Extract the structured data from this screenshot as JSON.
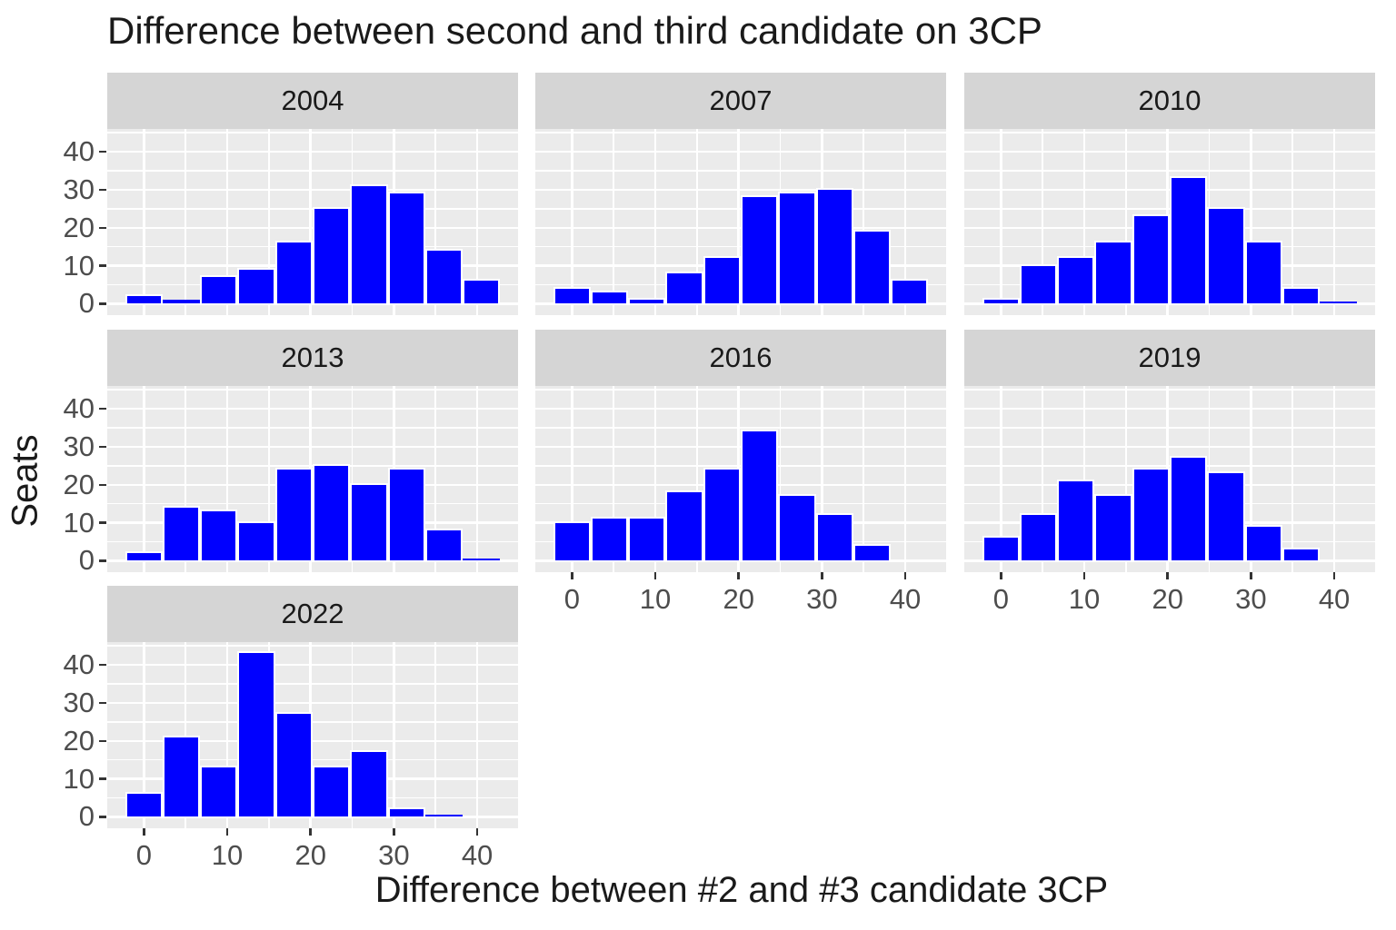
{
  "title": "Difference between second and third candidate on 3CP",
  "x_axis_title": "Difference between #2 and #3 candidate 3CP",
  "y_axis_title": "Seats",
  "colors": {
    "bar_fill": "#0000FF",
    "bar_border": "#FFFFFF",
    "panel_background": "#EBEBEB",
    "strip_background": "#D5D5D5",
    "gridline": "#FFFFFF",
    "axis_text": "#4D4D4D",
    "tick_mark": "#333333",
    "title_text": "#1A1A1A",
    "page_background": "#FFFFFF"
  },
  "chart_data": {
    "type": "bar",
    "subtype": "faceted-histogram",
    "title": "Difference between second and third candidate on 3CP",
    "xlabel": "Difference between #2 and #3 candidate 3CP",
    "ylabel": "Seats",
    "legend": "none",
    "grid": "on",
    "bin_width": 4.5,
    "x_tick_labels": [
      "0",
      "10",
      "20",
      "30",
      "40"
    ],
    "y_tick_labels": [
      "0",
      "10",
      "20",
      "30",
      "40"
    ],
    "x_ticks": [
      0,
      10,
      20,
      30,
      40
    ],
    "y_ticks": [
      0,
      10,
      20,
      30,
      40
    ],
    "xlim": [
      -4.4,
      44.9
    ],
    "ylim": [
      -3,
      46
    ],
    "facets": [
      {
        "label": "2004",
        "bin_centers": [
          0,
          4.5,
          9,
          13.5,
          18,
          22.5,
          27,
          31.5,
          36,
          40.5
        ],
        "values": [
          2.5,
          1,
          7.5,
          9.5,
          16.5,
          25.5,
          31.5,
          29.5,
          14.5,
          6.5
        ]
      },
      {
        "label": "2007",
        "bin_centers": [
          0,
          4.5,
          9,
          13.5,
          18,
          22.5,
          27,
          31.5,
          36,
          40.5
        ],
        "values": [
          4.5,
          3.5,
          1.5,
          8.5,
          12.5,
          28.5,
          29.5,
          30.5,
          19.5,
          6.5
        ]
      },
      {
        "label": "2010",
        "bin_centers": [
          0,
          4.5,
          9,
          13.5,
          18,
          22.5,
          27,
          31.5,
          36,
          40.5
        ],
        "values": [
          1.5,
          10.5,
          12.5,
          16.5,
          23.5,
          33.5,
          25.5,
          16.5,
          4.5,
          0.5
        ]
      },
      {
        "label": "2013",
        "bin_centers": [
          0,
          4.5,
          9,
          13.5,
          18,
          22.5,
          27,
          31.5,
          36,
          40.5
        ],
        "values": [
          2.5,
          14.5,
          13.5,
          10.5,
          24.5,
          25.5,
          20.5,
          24.5,
          8.5,
          0.5
        ]
      },
      {
        "label": "2016",
        "bin_centers": [
          0,
          4.5,
          9,
          13.5,
          18,
          22.5,
          27,
          31.5,
          36
        ],
        "values": [
          10.5,
          11.5,
          11.5,
          18.5,
          24.5,
          34.5,
          17.5,
          12.5,
          4.5
        ]
      },
      {
        "label": "2019",
        "bin_centers": [
          0,
          4.5,
          9,
          13.5,
          18,
          22.5,
          27,
          31.5,
          36
        ],
        "values": [
          6.5,
          12.5,
          21.5,
          17.5,
          24.5,
          27.5,
          23.5,
          9.5,
          3.5
        ]
      },
      {
        "label": "2022",
        "bin_centers": [
          0,
          4.5,
          9,
          13.5,
          18,
          22.5,
          27,
          31.5,
          36
        ],
        "values": [
          6.5,
          21.5,
          13.5,
          43.5,
          27.5,
          13.5,
          17.5,
          2.5,
          0.5
        ]
      }
    ]
  }
}
